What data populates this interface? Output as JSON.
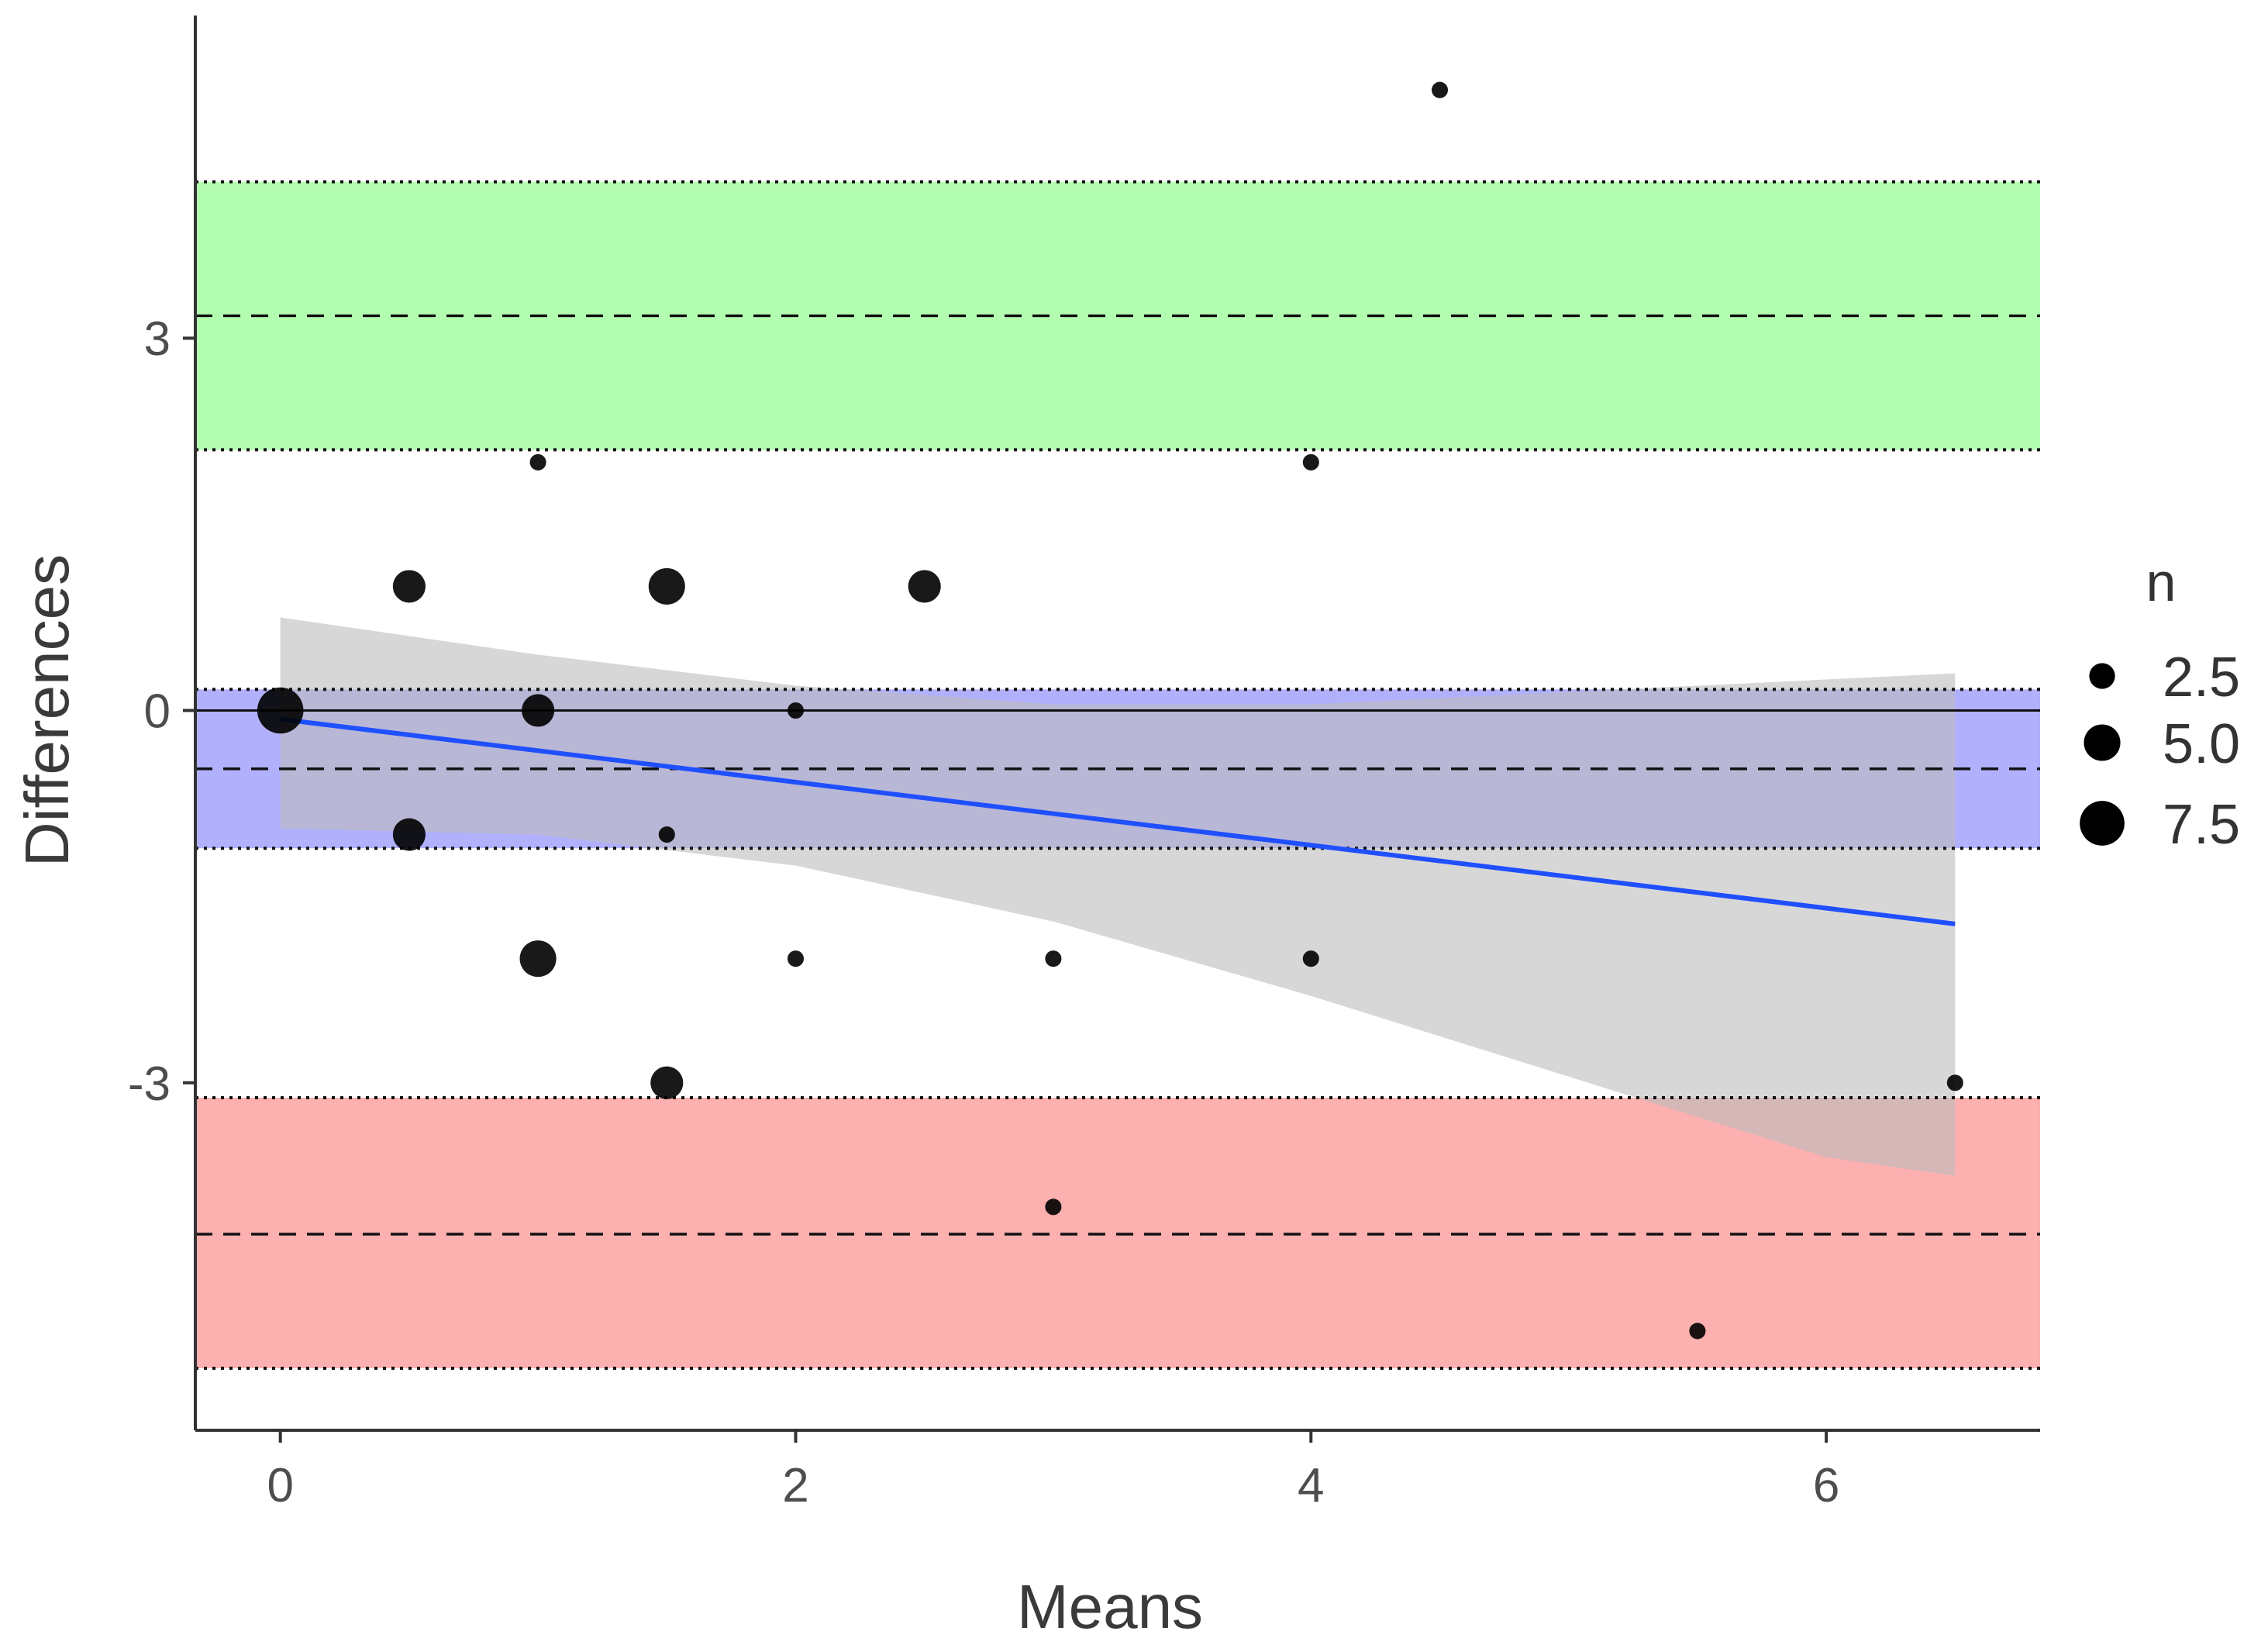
{
  "chart_data": {
    "type": "scatter",
    "xlabel": "Means",
    "ylabel": "Differences",
    "xlim": [
      -0.33,
      6.83
    ],
    "ylim": [
      -5.8,
      5.6
    ],
    "x_ticks": [
      0,
      2,
      4,
      6
    ],
    "x_tick_labels": [
      "0",
      "2",
      "4",
      "6"
    ],
    "y_ticks": [
      3,
      0,
      -3
    ],
    "y_tick_labels": [
      "3",
      "0",
      "-3"
    ],
    "grid": false,
    "bands": [
      {
        "name": "upper limit of agreement",
        "center": 3.18,
        "low": 2.1,
        "high": 4.26,
        "color": "#b3fdb0"
      },
      {
        "name": "bias",
        "center": -0.47,
        "low": -1.11,
        "high": 0.17,
        "color": "#b1b0fd"
      },
      {
        "name": "lower limit of agreement",
        "center": -4.22,
        "low": -5.3,
        "high": -3.12,
        "color": "#fdb0b0"
      }
    ],
    "zero_line": 0,
    "regression": {
      "color": "#1f4fff",
      "x": [
        0,
        6.5
      ],
      "y": [
        -0.07,
        -1.72
      ],
      "ci_color": "#bdbdbd",
      "ci": [
        {
          "x": 0.0,
          "low": -0.95,
          "high": 0.75
        },
        {
          "x": 1.0,
          "low": -1.0,
          "high": 0.45
        },
        {
          "x": 2.0,
          "low": -1.25,
          "high": 0.2
        },
        {
          "x": 3.0,
          "low": -1.7,
          "high": 0.05
        },
        {
          "x": 4.0,
          "low": -2.3,
          "high": 0.05
        },
        {
          "x": 5.0,
          "low": -2.95,
          "high": 0.15
        },
        {
          "x": 6.0,
          "low": -3.6,
          "high": 0.25
        },
        {
          "x": 6.5,
          "low": -3.75,
          "high": 0.3
        }
      ]
    },
    "points": [
      {
        "x": 0,
        "y": 0,
        "n": 8
      },
      {
        "x": 0.5,
        "y": 1,
        "n": 4
      },
      {
        "x": 0.5,
        "y": -1,
        "n": 4
      },
      {
        "x": 1,
        "y": 2,
        "n": 1
      },
      {
        "x": 1,
        "y": 0,
        "n": 4
      },
      {
        "x": 1,
        "y": -2,
        "n": 5
      },
      {
        "x": 1.5,
        "y": 1,
        "n": 5
      },
      {
        "x": 1.5,
        "y": -1,
        "n": 1
      },
      {
        "x": 1.5,
        "y": -3,
        "n": 4
      },
      {
        "x": 2,
        "y": 0,
        "n": 1
      },
      {
        "x": 2,
        "y": -2,
        "n": 1
      },
      {
        "x": 2.5,
        "y": 1,
        "n": 4
      },
      {
        "x": 3,
        "y": -2,
        "n": 1
      },
      {
        "x": 3,
        "y": -4,
        "n": 1
      },
      {
        "x": 4,
        "y": 2,
        "n": 1
      },
      {
        "x": 4,
        "y": -2,
        "n": 1
      },
      {
        "x": 4.5,
        "y": 5,
        "n": 1
      },
      {
        "x": 5.5,
        "y": -5,
        "n": 1
      },
      {
        "x": 6.5,
        "y": -3,
        "n": 1
      }
    ],
    "legend": {
      "title": "n",
      "position": "right",
      "entries": [
        {
          "label": "2.5",
          "n": 2.5
        },
        {
          "label": "5.0",
          "n": 5.0
        },
        {
          "label": "7.5",
          "n": 7.5
        }
      ]
    }
  }
}
